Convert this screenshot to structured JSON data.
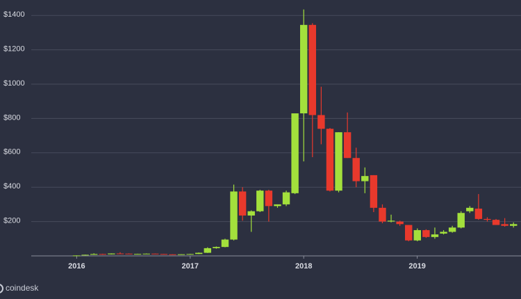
{
  "chart_data": {
    "type": "candlestick",
    "brand": "coindesk",
    "up_color": "#a3e03c",
    "down_color": "#e8392c",
    "grid": true,
    "xlim": [
      2015.6,
      2019.914
    ],
    "ylim": [
      0,
      1490
    ],
    "xticks": [
      2016,
      2017,
      2018,
      2019
    ],
    "yticks": [
      {
        "value": 200,
        "label": "$200"
      },
      {
        "value": 400,
        "label": "$400"
      },
      {
        "value": 600,
        "label": "$600"
      },
      {
        "value": 800,
        "label": "$800"
      },
      {
        "value": 1000,
        "label": "$1000"
      },
      {
        "value": 1200,
        "label": "$1200"
      },
      {
        "value": 1400,
        "label": "$1400"
      }
    ],
    "x": [
      2015.998,
      2016.075,
      2016.152,
      2016.229,
      2016.306,
      2016.383,
      2016.46,
      2016.537,
      2016.614,
      2016.691,
      2016.768,
      2016.845,
      2016.922,
      2016.999,
      2017.076,
      2017.153,
      2017.23,
      2017.307,
      2017.384,
      2017.461,
      2017.538,
      2017.615,
      2017.692,
      2017.769,
      2017.846,
      2017.923,
      2018,
      2018.077,
      2018.154,
      2018.231,
      2018.308,
      2018.385,
      2018.462,
      2018.539,
      2018.616,
      2018.693,
      2018.77,
      2018.847,
      2018.924,
      2019.001,
      2019.078,
      2019.155,
      2019.232,
      2019.309,
      2019.386,
      2019.463,
      2019.54,
      2019.617,
      2019.694,
      2019.771,
      2019.848
    ],
    "open": [
      1,
      2.5,
      6.5,
      11,
      9,
      14,
      13,
      11,
      11.5,
      13,
      11,
      9,
      8,
      9.5,
      11,
      18,
      45,
      52,
      95,
      375,
      235,
      260,
      380,
      290,
      300,
      365,
      830,
      1345,
      820,
      740,
      380,
      720,
      570,
      435,
      470,
      280,
      200,
      200,
      180,
      90,
      150,
      110,
      130,
      140,
      165,
      260,
      275,
      215,
      210,
      185,
      175
    ],
    "high": [
      3,
      7,
      15,
      12.5,
      14.5,
      21,
      14.5,
      12.5,
      14,
      13.5,
      11.5,
      9.5,
      10,
      12,
      20,
      50,
      55,
      100,
      415,
      400,
      265,
      385,
      385,
      300,
      380,
      830,
      1435,
      1355,
      985,
      745,
      720,
      835,
      630,
      515,
      470,
      300,
      240,
      205,
      180,
      160,
      155,
      165,
      150,
      175,
      260,
      290,
      360,
      225,
      215,
      220,
      195
    ],
    "low": [
      0.9,
      2.4,
      6.3,
      7,
      8.5,
      12,
      10,
      10.5,
      11.3,
      10.5,
      8,
      7,
      7.8,
      9.3,
      10.5,
      17,
      42,
      50,
      90,
      205,
      140,
      255,
      200,
      280,
      290,
      360,
      550,
      575,
      650,
      375,
      370,
      570,
      400,
      365,
      255,
      190,
      195,
      175,
      85,
      85,
      105,
      100,
      125,
      135,
      160,
      250,
      210,
      200,
      180,
      170,
      165
    ],
    "close": [
      2.5,
      6.5,
      11,
      9,
      14,
      13,
      11,
      11.5,
      13,
      11,
      9,
      8,
      9.5,
      11,
      18,
      45,
      52,
      95,
      375,
      235,
      260,
      380,
      290,
      300,
      370,
      830,
      1345,
      820,
      740,
      380,
      720,
      570,
      435,
      465,
      280,
      200,
      205,
      185,
      90,
      150,
      110,
      125,
      140,
      165,
      250,
      280,
      215,
      210,
      180,
      175,
      185
    ]
  }
}
